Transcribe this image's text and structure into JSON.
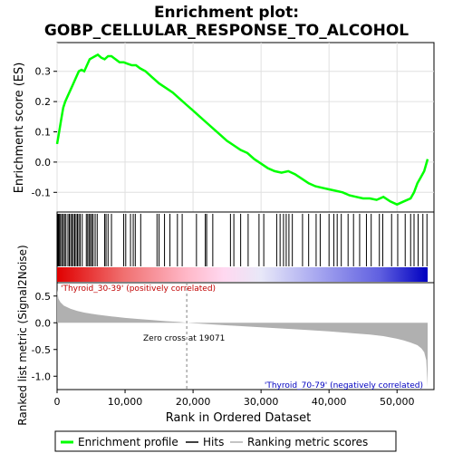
{
  "chart_data": {
    "type": "line",
    "title_line1": "Enrichment plot:",
    "title_line2": "GOBP_CELLULAR_RESPONSE_TO_ALCOHOL",
    "es_panel": {
      "ylabel": "Enrichment score (ES)",
      "ylim": [
        -0.165,
        0.395
      ],
      "yticks": [
        -0.1,
        0.0,
        0.1,
        0.2,
        0.3
      ],
      "ytick_labels": [
        "-0.1",
        "0.0",
        "0.1",
        "0.2",
        "0.3"
      ],
      "grid": true,
      "series": [
        {
          "name": "Enrichment profile",
          "color": "#00ff00",
          "x": [
            0,
            300,
            600,
            900,
            1200,
            1600,
            2000,
            2400,
            2800,
            3200,
            3600,
            4000,
            4400,
            4800,
            5200,
            5600,
            6000,
            6500,
            7000,
            7500,
            8000,
            8600,
            9200,
            9800,
            10400,
            11000,
            11600,
            12200,
            13000,
            14000,
            15000,
            16000,
            17000,
            18000,
            19000,
            20000,
            21000,
            22000,
            23000,
            24000,
            25000,
            26000,
            27000,
            28000,
            29000,
            30000,
            31000,
            32000,
            33000,
            34000,
            35000,
            36000,
            37000,
            38000,
            39000,
            40000,
            41000,
            42000,
            43000,
            44000,
            45000,
            46000,
            47000,
            48000,
            49000,
            50000,
            51000,
            52000,
            52500,
            53000,
            53500,
            54000,
            54500
          ],
          "values": [
            0.06,
            0.1,
            0.14,
            0.18,
            0.2,
            0.22,
            0.24,
            0.26,
            0.28,
            0.3,
            0.305,
            0.3,
            0.32,
            0.34,
            0.345,
            0.35,
            0.355,
            0.345,
            0.34,
            0.35,
            0.35,
            0.34,
            0.33,
            0.33,
            0.325,
            0.32,
            0.32,
            0.31,
            0.3,
            0.28,
            0.26,
            0.245,
            0.23,
            0.21,
            0.19,
            0.17,
            0.15,
            0.13,
            0.11,
            0.09,
            0.07,
            0.055,
            0.04,
            0.03,
            0.01,
            -0.005,
            -0.02,
            -0.03,
            -0.035,
            -0.03,
            -0.04,
            -0.055,
            -0.07,
            -0.08,
            -0.085,
            -0.09,
            -0.095,
            -0.1,
            -0.11,
            -0.115,
            -0.12,
            -0.12,
            -0.125,
            -0.115,
            -0.13,
            -0.14,
            -0.13,
            -0.12,
            -0.1,
            -0.07,
            -0.05,
            -0.03,
            0.01
          ]
        }
      ]
    },
    "hits_panel": {
      "hit_ranks": [
        100,
        200,
        350,
        500,
        700,
        900,
        1100,
        1300,
        1600,
        1800,
        2000,
        2200,
        2400,
        2600,
        2800,
        3000,
        3200,
        3400,
        3700,
        4300,
        4500,
        4700,
        4900,
        5100,
        5300,
        5600,
        5900,
        7000,
        7200,
        7500,
        8000,
        9800,
        10100,
        10800,
        11200,
        11500,
        12300,
        14700,
        15000,
        15800,
        16600,
        17700,
        18400,
        20500,
        21800,
        22000,
        22900,
        25500,
        26000,
        27000,
        28100,
        29700,
        30400,
        32300,
        32800,
        33300,
        33700,
        34100,
        34600,
        36100,
        37000,
        38100,
        38700,
        40000,
        40700,
        41200,
        41800,
        42800,
        43600,
        44500,
        45500,
        46200,
        47400,
        47900,
        49200,
        50100,
        51200,
        52000,
        52500,
        53100,
        53800,
        54400
      ]
    },
    "metric_panel": {
      "ylabel": "Ranked list metric (Signal2Noise)",
      "ylim": [
        -1.25,
        0.75
      ],
      "yticks": [
        -1.0,
        -0.5,
        0.0,
        0.5
      ],
      "ytick_labels": [
        "-1.0",
        "-0.5",
        "0.0",
        "0.5"
      ],
      "fill_color": "#b0b0b0",
      "metric_x": [
        0,
        200,
        500,
        1000,
        2000,
        3000,
        4000,
        5000,
        6000,
        8000,
        10000,
        12000,
        14000,
        16000,
        18000,
        19071,
        20000,
        24000,
        28000,
        32000,
        36000,
        40000,
        44000,
        46000,
        48000,
        50000,
        51000,
        52000,
        53000,
        53600,
        54000,
        54300,
        54500
      ],
      "metric_y": [
        0.62,
        0.45,
        0.38,
        0.32,
        0.26,
        0.22,
        0.19,
        0.17,
        0.15,
        0.12,
        0.09,
        0.07,
        0.05,
        0.03,
        0.015,
        0.0,
        -0.01,
        -0.04,
        -0.07,
        -0.1,
        -0.13,
        -0.16,
        -0.2,
        -0.22,
        -0.25,
        -0.3,
        -0.33,
        -0.37,
        -0.42,
        -0.48,
        -0.55,
        -0.7,
        -1.2
      ],
      "zero_cross": 19071,
      "zero_cross_label": "Zero cross at 19071",
      "pos_label": "'Thyroid_30-39' (positively correlated)",
      "neg_label": "'Thyroid_70-79' (negatively correlated)"
    },
    "xlabel": "Rank in Ordered Dataset",
    "xlim": [
      0,
      54500
    ],
    "xticks": [
      0,
      10000,
      20000,
      30000,
      40000,
      50000
    ],
    "xtick_labels": [
      "0",
      "10,000",
      "20,000",
      "30,000",
      "40,000",
      "50,000"
    ],
    "legend": {
      "placement": "bottom",
      "items": [
        {
          "label": "Enrichment profile",
          "color": "#00ff00"
        },
        {
          "label": "Hits",
          "color": "#000000"
        },
        {
          "label": "Ranking metric scores",
          "color": "#b0b0b0"
        }
      ]
    },
    "colors": {
      "pos_label": "#c00000",
      "neg_label": "#0000c0",
      "zero_line": "#808080",
      "grid": "#e0e0e0"
    }
  }
}
